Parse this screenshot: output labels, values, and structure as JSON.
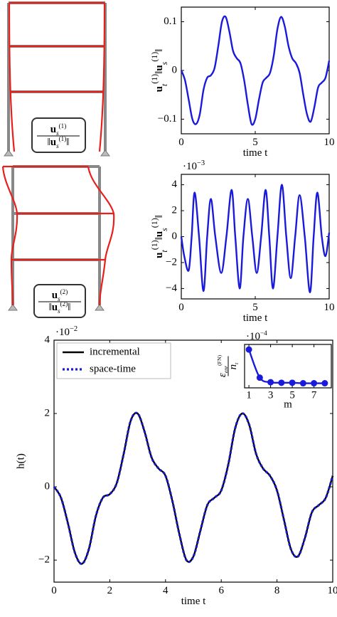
{
  "mode_shapes": [
    {
      "numerator": [
        "u",
        "s",
        "(1)"
      ],
      "denominator": [
        "‖",
        "u",
        "s",
        "(1)",
        "‖"
      ]
    },
    {
      "numerator": [
        "u",
        "s",
        "(2)"
      ],
      "denominator": [
        "‖",
        "u",
        "s",
        "(2)",
        "‖"
      ]
    }
  ],
  "chart_data": [
    {
      "type": "line",
      "color": "#1a1adb",
      "xlabel": "time t",
      "ylabel": [
        "u",
        "t",
        "(1)",
        "‖",
        "u",
        "s",
        "(1)",
        "‖"
      ],
      "x": [
        0,
        0.25,
        0.5,
        0.75,
        1,
        1.25,
        1.5,
        1.75,
        2,
        2.25,
        2.5,
        2.75,
        3,
        3.25,
        3.5,
        3.75,
        4,
        4.25,
        4.5,
        4.75,
        5,
        5.25,
        5.5,
        5.75,
        6,
        6.25,
        6.5,
        6.75,
        7,
        7.25,
        7.5,
        7.75,
        8,
        8.25,
        8.5,
        8.75,
        9,
        9.25,
        9.5,
        9.75,
        10
      ],
      "values": [
        0,
        -0.02,
        -0.06,
        -0.1,
        -0.11,
        -0.09,
        -0.04,
        -0.015,
        -0.01,
        0.005,
        0.05,
        0.1,
        0.11,
        0.08,
        0.04,
        0.025,
        0.015,
        -0.02,
        -0.07,
        -0.11,
        -0.1,
        -0.06,
        -0.025,
        -0.015,
        -0.005,
        0.03,
        0.085,
        0.11,
        0.09,
        0.05,
        0.025,
        0.015,
        -0.005,
        -0.05,
        -0.09,
        -0.105,
        -0.075,
        -0.035,
        -0.025,
        -0.015,
        0.02
      ],
      "xlim": [
        0,
        10
      ],
      "xticks": [
        0,
        5,
        10
      ],
      "ylim": [
        -0.13,
        0.13
      ],
      "yticks": [
        {
          "value": -0.1,
          "label": "−0.1"
        },
        0,
        0.1
      ]
    },
    {
      "type": "line",
      "color": "#1a1adb",
      "xlabel": "time t",
      "ylabel": [
        "u",
        "t",
        "(1)",
        "‖",
        "u",
        "s",
        "(1)",
        "‖"
      ],
      "multiplier": [
        "·10",
        "−3"
      ],
      "x": [
        0,
        0.2,
        0.5,
        0.7,
        0.9,
        1.2,
        1.5,
        1.75,
        2,
        2.3,
        2.7,
        3.05,
        3.4,
        3.65,
        3.95,
        4.2,
        4.5,
        4.8,
        5.1,
        5.4,
        5.7,
        5.95,
        6.2,
        6.5,
        6.8,
        7.1,
        7.4,
        7.7,
        8,
        8.35,
        8.7,
        8.95,
        9.2,
        9.5,
        9.75,
        10
      ],
      "values": [
        0,
        -1.5,
        -2.6,
        0,
        3.4,
        0,
        -4.2,
        0,
        2.9,
        0,
        -2.8,
        0,
        3.6,
        0,
        -4,
        0,
        2.9,
        0,
        -2.8,
        0,
        3.6,
        0,
        -4,
        0,
        4,
        0,
        -3.2,
        0,
        3.2,
        0,
        -4.3,
        0,
        3.4,
        0,
        -1.5,
        0.3
      ],
      "xlim": [
        0,
        10
      ],
      "xticks": [
        0,
        5,
        10
      ],
      "ylim": [
        -4.8,
        4.8
      ],
      "yticks": [
        {
          "value": -4,
          "label": "−4"
        },
        {
          "value": -2,
          "label": "−2"
        },
        0,
        2,
        4
      ]
    },
    {
      "type": "line",
      "xlabel": "time t",
      "ylabel": "h(t)",
      "multiplier": [
        "·10",
        "−2"
      ],
      "legend": "upper left",
      "x": [
        0,
        0.25,
        0.5,
        0.75,
        1,
        1.25,
        1.5,
        1.75,
        2,
        2.25,
        2.5,
        2.75,
        3,
        3.25,
        3.5,
        3.75,
        4,
        4.25,
        4.5,
        4.75,
        5,
        5.25,
        5.5,
        5.75,
        6,
        6.25,
        6.5,
        6.75,
        7,
        7.25,
        7.5,
        7.75,
        8,
        8.25,
        8.5,
        8.75,
        9,
        9.25,
        9.5,
        9.75,
        10
      ],
      "series": [
        {
          "name": "incremental",
          "color": "#000000",
          "dash": false,
          "values": [
            0,
            -0.3,
            -1,
            -1.8,
            -2.1,
            -1.7,
            -0.8,
            -0.3,
            -0.2,
            0.1,
            0.9,
            1.8,
            2,
            1.5,
            0.8,
            0.5,
            0.3,
            -0.4,
            -1.3,
            -2,
            -1.9,
            -1.2,
            -0.5,
            -0.3,
            -0.1,
            0.6,
            1.6,
            2,
            1.7,
            0.9,
            0.5,
            0.3,
            -0.1,
            -0.9,
            -1.7,
            -1.9,
            -1.4,
            -0.7,
            -0.5,
            -0.3,
            0.3
          ]
        },
        {
          "name": "space-time",
          "color": "#1a1adb",
          "dash": true,
          "values": [
            0,
            -0.3,
            -1,
            -1.8,
            -2.1,
            -1.7,
            -0.8,
            -0.3,
            -0.2,
            0.1,
            0.9,
            1.8,
            2,
            1.5,
            0.8,
            0.5,
            0.3,
            -0.4,
            -1.3,
            -2,
            -1.9,
            -1.2,
            -0.5,
            -0.3,
            -0.1,
            0.6,
            1.6,
            2,
            1.7,
            0.9,
            0.5,
            0.3,
            -0.1,
            -0.9,
            -1.7,
            -1.9,
            -1.4,
            -0.7,
            -0.5,
            -0.3,
            0.3
          ]
        }
      ],
      "xlim": [
        0,
        10
      ],
      "xticks": [
        0,
        2,
        4,
        6,
        8,
        10
      ],
      "ylim": [
        -2.6,
        4
      ],
      "yticks": [
        {
          "value": -2,
          "label": "−2"
        },
        0,
        2,
        4
      ]
    },
    {
      "type": "line",
      "markers": true,
      "color": "#1a1adb",
      "xlabel": "m",
      "ylabel": {
        "numerator": [
          "ε",
          "enr",
          "(FN)"
        ],
        "denominator": [
          "n",
          "t"
        ]
      },
      "multiplier": [
        "·10",
        "−4"
      ],
      "x": [
        1,
        2,
        3,
        4,
        5,
        6,
        7,
        8
      ],
      "values": [
        1.4,
        0.3,
        0.12,
        0.1,
        0.1,
        0.08,
        0.08,
        0.08
      ],
      "xlim": [
        0.6,
        8.6
      ],
      "xticks": [
        1,
        3,
        5,
        7
      ],
      "ylim": [
        -0.1,
        1.6
      ]
    }
  ]
}
